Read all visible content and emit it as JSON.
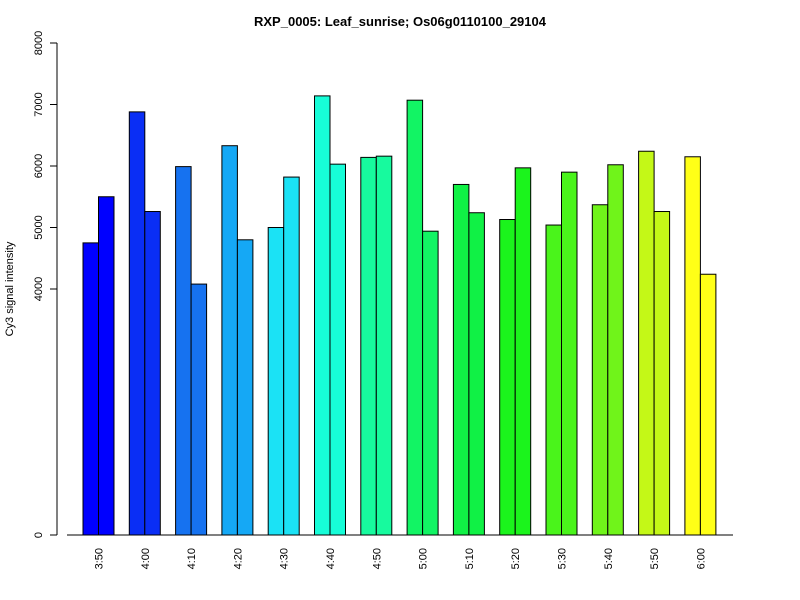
{
  "chart_data": {
    "type": "bar",
    "title": "RXP_0005: Leaf_sunrise; Os06g0110100_29104",
    "xlabel": "",
    "ylabel": "Cy3 signal intensity",
    "ylim": [
      0,
      8000
    ],
    "y_ticks": [
      "0",
      "4000",
      "5000",
      "6000",
      "7000",
      "8000"
    ],
    "categories": [
      "3:50",
      "4:00",
      "4:10",
      "4:20",
      "4:30",
      "4:40",
      "4:50",
      "5:00",
      "5:10",
      "5:20",
      "5:30",
      "5:40",
      "5:50",
      "6:00"
    ],
    "values": [
      [
        4750,
        5500
      ],
      [
        6880,
        5260
      ],
      [
        5990,
        4080
      ],
      [
        6330,
        4800
      ],
      [
        5000,
        5820
      ],
      [
        7140,
        6030
      ],
      [
        6140,
        6160
      ],
      [
        7070,
        4940
      ],
      [
        5700,
        5240
      ],
      [
        5130,
        5970
      ],
      [
        5040,
        5900
      ],
      [
        5370,
        6020
      ],
      [
        6240,
        5260
      ],
      [
        6150,
        4240
      ]
    ],
    "colors": [
      "#0000FF",
      "#0A2EF5",
      "#1672F0",
      "#15A8F5",
      "#1BE2F5",
      "#17FDD8",
      "#17FA9E",
      "#12F464",
      "#10F145",
      "#1BF41C",
      "#4AF41B",
      "#70F41A",
      "#C4F817",
      "#FFFF17"
    ],
    "grid": false,
    "legend": "none"
  }
}
